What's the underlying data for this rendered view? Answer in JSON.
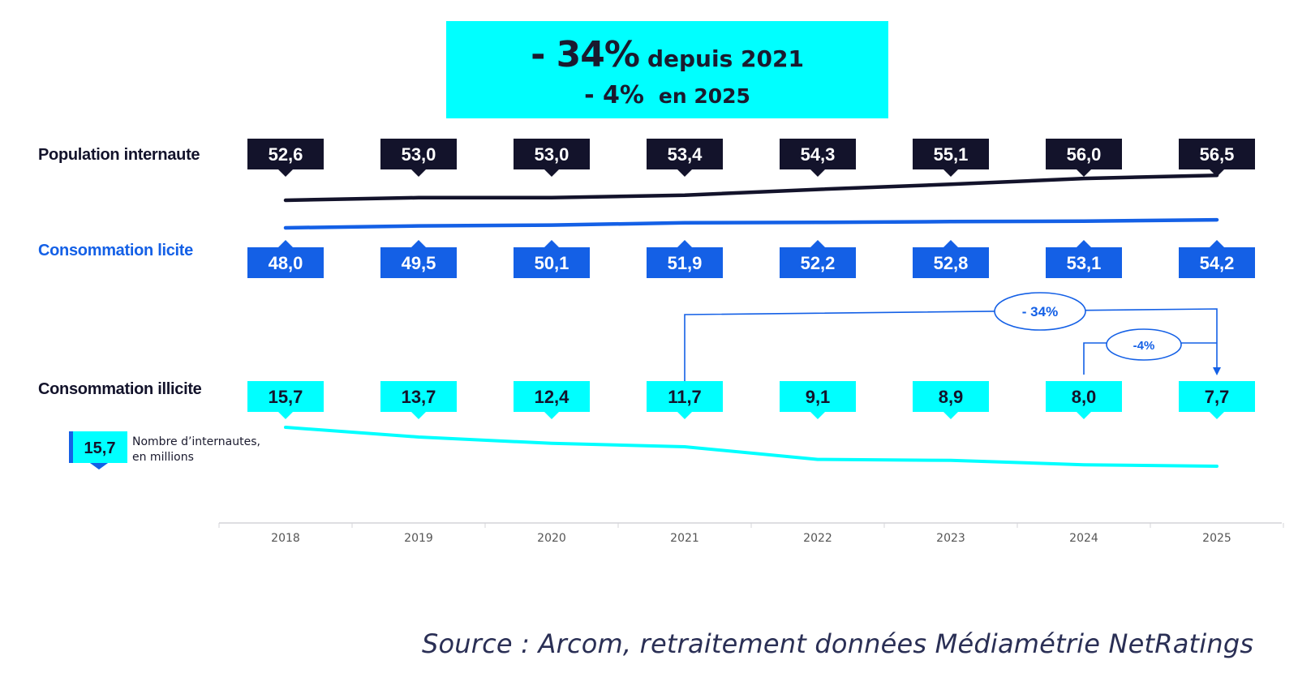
{
  "headline": {
    "total_pct": "- 34%",
    "total_label": "depuis 2021",
    "year_pct": "- 4%",
    "year_label": "en 2025"
  },
  "legend": {
    "sample_value": "15,7",
    "text_line1": "Nombre d’internautes,",
    "text_line2": "en millions"
  },
  "source": "Source : Arcom, retraitement données Médiamétrie NetRatings",
  "colors": {
    "population": "#13132B",
    "licite": "#1460E6",
    "illicite": "#00FFFF",
    "headline_bg": "#00FFFF",
    "annotation": "#1460E6"
  },
  "chart_data": {
    "type": "line",
    "title": "",
    "xlabel": "",
    "ylabel": "Nombre d’internautes, en millions",
    "categories": [
      "2018",
      "2019",
      "2020",
      "2021",
      "2022",
      "2023",
      "2024",
      "2025"
    ],
    "series": [
      {
        "key": "population",
        "name": "Population internaute",
        "values": [
          52.6,
          53.0,
          53.0,
          53.4,
          54.3,
          55.1,
          56.0,
          56.5
        ],
        "labels": [
          "52,6",
          "53,0",
          "53,0",
          "53,4",
          "54,3",
          "55,1",
          "56,0",
          "56,5"
        ]
      },
      {
        "key": "licite",
        "name": "Consommation licite",
        "values": [
          48.0,
          49.5,
          50.1,
          51.9,
          52.2,
          52.8,
          53.1,
          54.2
        ],
        "labels": [
          "48,0",
          "49,5",
          "50,1",
          "51,9",
          "52,2",
          "52,8",
          "53,1",
          "54,2"
        ]
      },
      {
        "key": "illicite",
        "name": "Consommation illicite",
        "values": [
          15.7,
          13.7,
          12.4,
          11.7,
          9.1,
          8.9,
          8.0,
          7.7
        ],
        "labels": [
          "15,7",
          "13,7",
          "12,4",
          "11,7",
          "9,1",
          "8,9",
          "8,0",
          "7,7"
        ]
      }
    ],
    "annotations": [
      {
        "label": "- 34%",
        "from": "2021",
        "to": "2025",
        "series": "illicite"
      },
      {
        "label": "-4%",
        "from": "2024",
        "to": "2025",
        "series": "illicite"
      }
    ]
  }
}
